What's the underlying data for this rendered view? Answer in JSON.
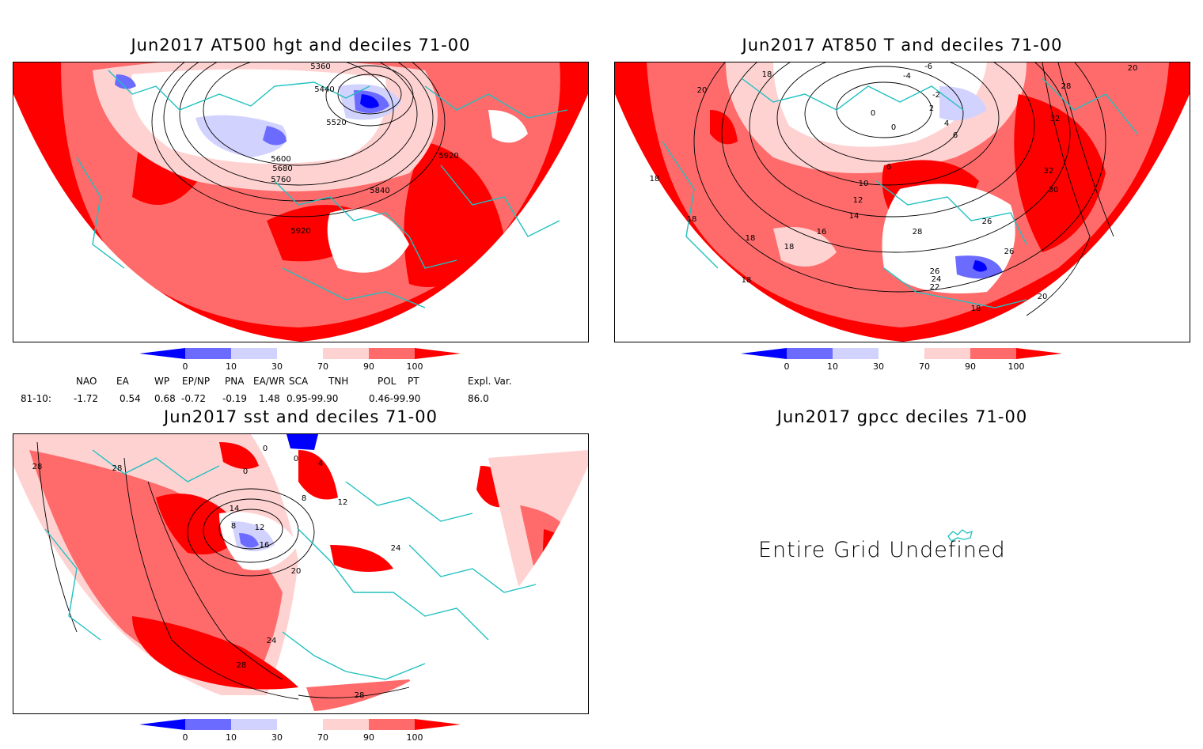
{
  "colors": {
    "d0_10": "#0000ff",
    "d10_30": "#6b6bff",
    "d30_70_low": "#d2d2ff",
    "d30_70": "#ffffff",
    "d70_90": "#ffd2d2",
    "d90_100": "#ff6b6b",
    "d100": "#ff0000",
    "coast": "#20c0c0",
    "contour": "#000000"
  },
  "panels": {
    "hgt500": {
      "title": "Jun2017 AT500 hgt and deciles 71-00",
      "labels": [
        "5360",
        "5440",
        "5520",
        "5600",
        "5680",
        "5760",
        "5840",
        "5920",
        "5920"
      ]
    },
    "t850": {
      "title": "Jun2017 AT850 T and deciles 71-00",
      "labels": [
        "-6",
        "-4",
        "-2",
        "0",
        "0",
        "2",
        "4",
        "6",
        "6",
        "10",
        "12",
        "14",
        "16",
        "18",
        "18",
        "18",
        "18",
        "18",
        "18",
        "18",
        "20",
        "20",
        "20",
        "22",
        "24",
        "26",
        "26",
        "26",
        "28",
        "28",
        "30",
        "32",
        "32"
      ]
    },
    "sst": {
      "title": "Jun2017 sst and deciles 71-00",
      "labels": [
        "0",
        "0",
        "0",
        "4",
        "8",
        "8",
        "12",
        "12",
        "14",
        "16",
        "20",
        "24",
        "24",
        "28",
        "28",
        "28",
        "28"
      ]
    },
    "gpcc": {
      "title": "Jun2017 gpcc deciles 71-00",
      "message": "Entire Grid Undefined"
    }
  },
  "colorbar": {
    "ticks": [
      "0",
      "10",
      "30",
      "70",
      "90",
      "100"
    ]
  },
  "indices": {
    "row_label": "81-10:",
    "names": [
      "NAO",
      "EA",
      "WP",
      "EP/NP",
      "PNA",
      "EA/WR",
      "SCA",
      "TNH",
      "POL",
      "PT",
      "Expl. Var."
    ],
    "values": [
      "-1.72",
      "0.54",
      "0.68",
      "-0.72",
      "-0.19",
      "1.48",
      "0.95-99.90",
      "",
      "0.46-99.90",
      "",
      "86.0"
    ]
  }
}
